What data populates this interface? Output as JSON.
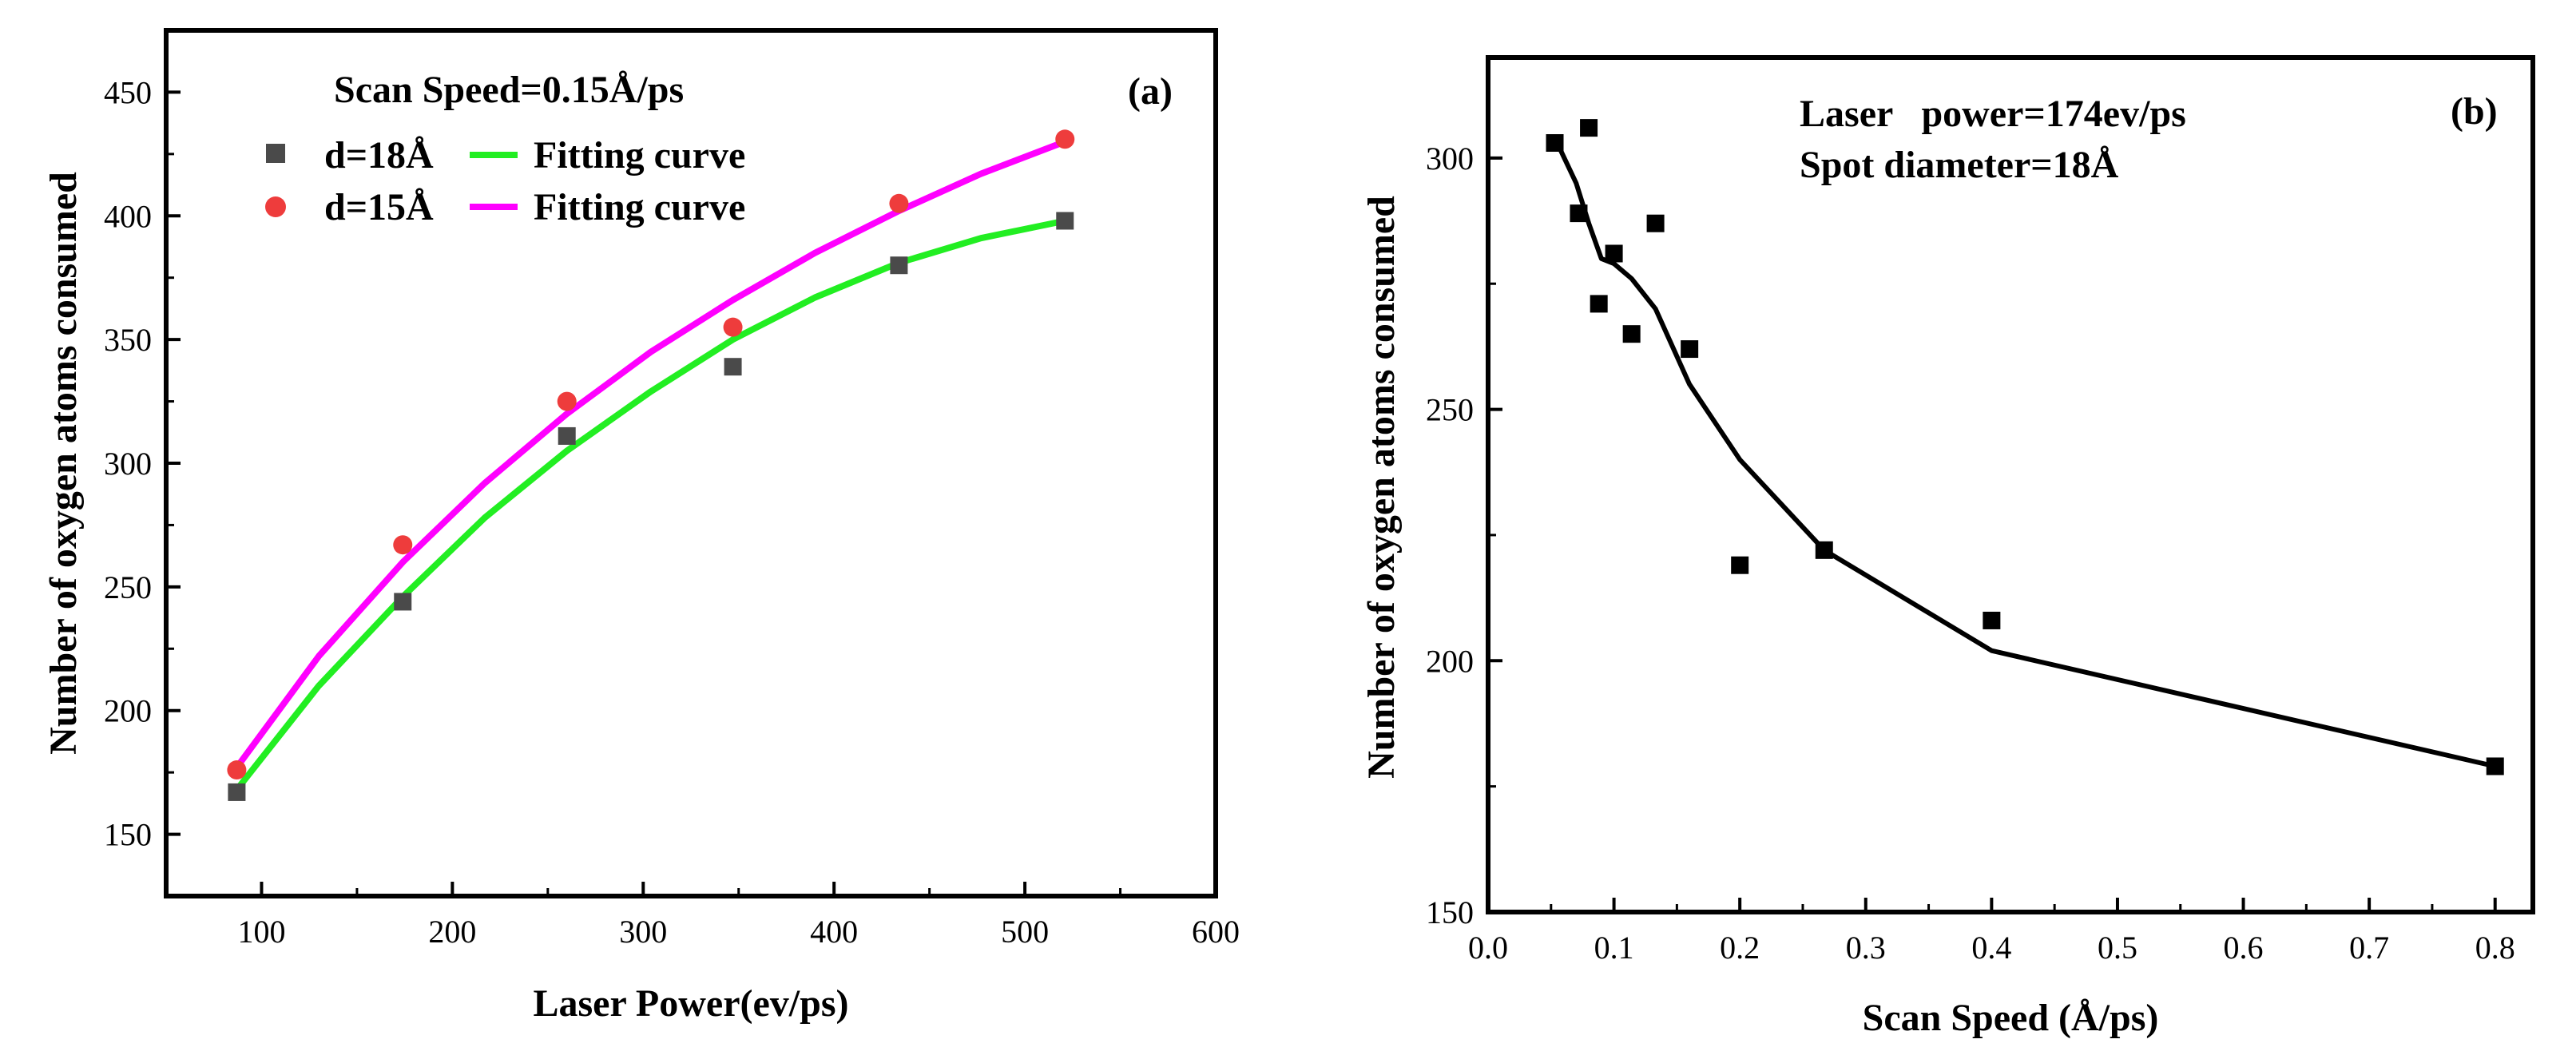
{
  "chart_data": [
    {
      "type": "scatter",
      "panel_label": "(a)",
      "annotation": "Scan Speed=0.15Å/ps",
      "xlabel": "Laser Power(ev/ps)",
      "ylabel": "Number of oxygen atoms consumed",
      "xlim": [
        50,
        600
      ],
      "ylim": [
        125,
        475
      ],
      "xticks": [
        100,
        200,
        300,
        400,
        500,
        600
      ],
      "yticks": [
        150,
        200,
        250,
        300,
        350,
        400,
        450
      ],
      "legend_position": "top-left",
      "series": [
        {
          "name": "d=18Å",
          "kind": "points",
          "marker": "square",
          "color": "#4a4a4a",
          "x": [
            87,
            174,
            260,
            347,
            434,
            521
          ],
          "y": [
            167,
            244,
            311,
            339,
            380,
            398
          ]
        },
        {
          "name": "Fitting curve",
          "kind": "line",
          "color": "#22ee22",
          "x": [
            87,
            130,
            174,
            217,
            260,
            304,
            347,
            390,
            434,
            477,
            521
          ],
          "y": [
            168,
            210,
            246,
            278,
            305,
            329,
            350,
            367,
            381,
            391,
            398
          ]
        },
        {
          "name": "d=15Å",
          "kind": "points",
          "marker": "circle",
          "color": "#ee3c3c",
          "x": [
            87,
            174,
            260,
            347,
            434,
            521
          ],
          "y": [
            176,
            267,
            325,
            355,
            405,
            431
          ]
        },
        {
          "name": "Fitting curve",
          "kind": "line",
          "color": "#ff00ff",
          "x": [
            87,
            130,
            174,
            217,
            260,
            304,
            347,
            390,
            434,
            477,
            521
          ],
          "y": [
            177,
            222,
            260,
            292,
            320,
            345,
            366,
            385,
            402,
            417,
            430
          ]
        }
      ]
    },
    {
      "type": "scatter",
      "panel_label": "(b)",
      "annotations": [
        "Laser   power=174ev/ps",
        "Spot diameter=18Å"
      ],
      "xlabel": "Scan Speed (Å/ps)",
      "ylabel": "Number of oxygen atoms consumed",
      "xlim": [
        0.0,
        0.83
      ],
      "ylim": [
        150,
        320
      ],
      "xticks": [
        0.0,
        0.1,
        0.2,
        0.3,
        0.4,
        0.5,
        0.6,
        0.7,
        0.8
      ],
      "yticks": [
        150,
        200,
        250,
        300
      ],
      "series": [
        {
          "name": "data",
          "kind": "points",
          "marker": "square",
          "color": "#000000",
          "x": [
            0.053,
            0.072,
            0.08,
            0.088,
            0.1,
            0.114,
            0.133,
            0.16,
            0.2,
            0.267,
            0.4,
            0.8
          ],
          "y": [
            303,
            289,
            306,
            271,
            281,
            265,
            287,
            262,
            219,
            222,
            208,
            179
          ]
        },
        {
          "name": "curve",
          "kind": "line",
          "color": "#000000",
          "x": [
            0.053,
            0.07,
            0.08,
            0.09,
            0.1,
            0.114,
            0.133,
            0.16,
            0.2,
            0.267,
            0.4,
            0.8
          ],
          "y": [
            304,
            295,
            287,
            280,
            279,
            276,
            270,
            255,
            240,
            222,
            202,
            179
          ]
        }
      ]
    }
  ]
}
